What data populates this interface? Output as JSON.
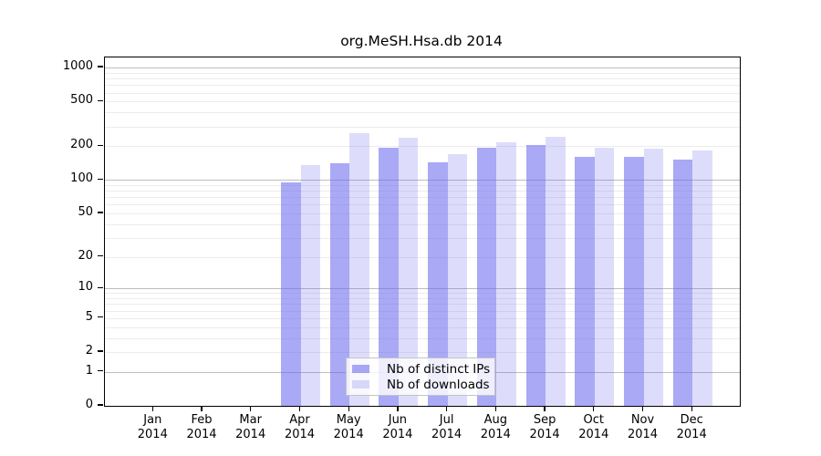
{
  "title": "org.MeSH.Hsa.db 2014",
  "chart_data": {
    "type": "bar",
    "title": "org.MeSH.Hsa.db 2014",
    "categories": [
      "Jan",
      "Feb",
      "Mar",
      "Apr",
      "May",
      "Jun",
      "Jul",
      "Aug",
      "Sep",
      "Oct",
      "Nov",
      "Dec"
    ],
    "year_label": "2014",
    "series": [
      {
        "name": "Nb of distinct IPs",
        "key": "distinct-ips",
        "color": "rgba(102,102,238,0.56)",
        "values": [
          0,
          0,
          0,
          95,
          142,
          192,
          144,
          195,
          206,
          162,
          161,
          153
        ]
      },
      {
        "name": "Nb of downloads",
        "key": "downloads",
        "color": "rgba(102,102,238,0.22)",
        "values": [
          0,
          0,
          0,
          136,
          263,
          240,
          171,
          218,
          244,
          195,
          191,
          184
        ]
      }
    ],
    "y_scale": "log10(value+1)",
    "y_ticks": [
      0,
      1,
      2,
      5,
      10,
      20,
      50,
      100,
      200,
      500,
      1000
    ],
    "ylim": [
      0,
      1230
    ],
    "grid": {
      "on": true,
      "minor_color": "#ececec",
      "major_color": "#bdbdbd",
      "major_values": [
        1,
        10,
        100,
        1000
      ]
    },
    "legend_position": "bottom-center",
    "axis_color": "#000000"
  }
}
